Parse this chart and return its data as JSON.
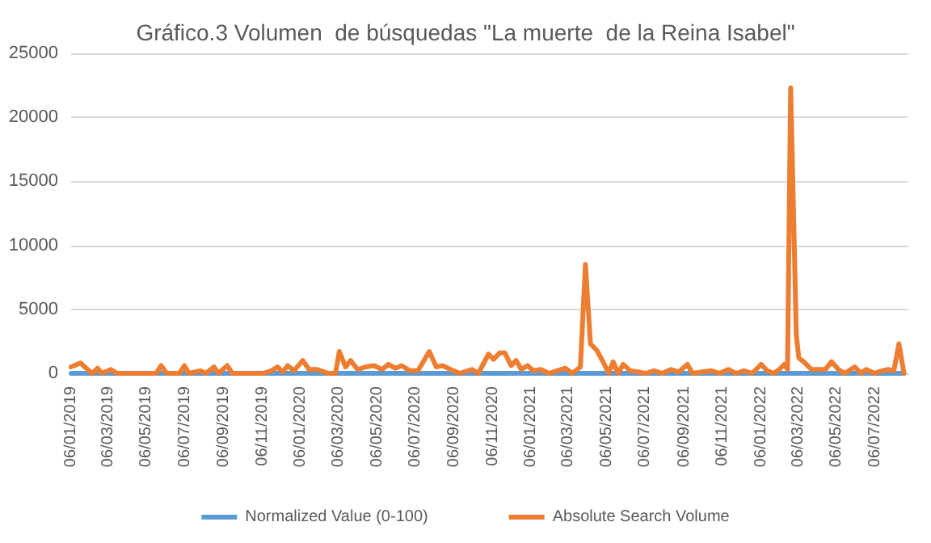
{
  "chart_data": {
    "type": "line",
    "title": "Gráfico.3 Volumen  de búsquedas \"La muerte  de la Reina Isabel\"",
    "x": [
      "2019-01-06",
      "2019-01-21",
      "2019-02-01",
      "2019-02-09",
      "2019-02-17",
      "2019-02-24",
      "2019-03-10",
      "2019-03-20",
      "2019-05-21",
      "2019-05-29",
      "2019-06-07",
      "2019-06-27",
      "2019-07-05",
      "2019-07-12",
      "2019-07-30",
      "2019-08-08",
      "2019-08-21",
      "2019-08-28",
      "2019-09-11",
      "2019-09-19",
      "2019-11-07",
      "2019-11-20",
      "2019-11-30",
      "2019-12-08",
      "2019-12-16",
      "2019-12-26",
      "2020-01-09",
      "2020-01-19",
      "2020-02-01",
      "2020-02-19",
      "2020-03-01",
      "2020-03-07",
      "2020-03-17",
      "2020-03-25",
      "2020-04-05",
      "2020-04-18",
      "2020-05-01",
      "2020-05-14",
      "2020-05-24",
      "2020-06-04",
      "2020-06-14",
      "2020-06-27",
      "2020-07-10",
      "2020-07-28",
      "2020-08-08",
      "2020-08-18",
      "2020-08-31",
      "2020-09-14",
      "2020-10-04",
      "2020-10-14",
      "2020-10-30",
      "2020-11-07",
      "2020-11-17",
      "2020-11-25",
      "2020-12-05",
      "2020-12-13",
      "2020-12-21",
      "2020-12-31",
      "2021-01-09",
      "2021-01-21",
      "2021-02-03",
      "2021-02-16",
      "2021-03-01",
      "2021-03-12",
      "2021-03-25",
      "2021-04-02",
      "2021-04-10",
      "2021-04-20",
      "2021-04-30",
      "2021-05-09",
      "2021-05-16",
      "2021-05-24",
      "2021-06-01",
      "2021-06-12",
      "2021-07-07",
      "2021-07-20",
      "2021-08-02",
      "2021-08-16",
      "2021-08-28",
      "2021-09-11",
      "2021-09-19",
      "2021-10-19",
      "2021-11-01",
      "2021-11-15",
      "2021-11-27",
      "2021-12-10",
      "2021-12-23",
      "2022-01-06",
      "2022-01-16",
      "2022-01-26",
      "2022-02-04",
      "2022-02-12",
      "2022-02-17",
      "2022-02-22",
      "2022-03-03",
      "2022-03-07",
      "2022-03-17",
      "2022-03-27",
      "2022-04-18",
      "2022-04-28",
      "2022-05-09",
      "2022-05-19",
      "2022-06-04",
      "2022-06-14",
      "2022-06-22",
      "2022-07-05",
      "2022-07-17",
      "2022-07-27",
      "2022-08-05",
      "2022-08-13",
      "2022-08-21"
    ],
    "series": [
      {
        "name": "Normalized Value (0-100)",
        "color": "#5b9bd5",
        "values": [
          0,
          0,
          0,
          0,
          0,
          0,
          0,
          0,
          0,
          0,
          0,
          0,
          0,
          0,
          0,
          0,
          0,
          0,
          0,
          0,
          0,
          0,
          0,
          0,
          0,
          0,
          0,
          0,
          0,
          0,
          0,
          0,
          0,
          0,
          0,
          0,
          0,
          0,
          0,
          0,
          0,
          0,
          0,
          0,
          0,
          0,
          0,
          0,
          0,
          0,
          0,
          0,
          0,
          0,
          0,
          0,
          0,
          0,
          0,
          0,
          0,
          0,
          0,
          0,
          0,
          0,
          0,
          0,
          0,
          0,
          0,
          0,
          0,
          0,
          0,
          0,
          0,
          0,
          0,
          0,
          0,
          0,
          0,
          0,
          0,
          0,
          0,
          0,
          0,
          0,
          0,
          0,
          0,
          0,
          0,
          0,
          0,
          0,
          0,
          0,
          0,
          0,
          0,
          0,
          0,
          0,
          0,
          0,
          0,
          0,
          0
        ]
      },
      {
        "name": "Absolute Search Volume",
        "color": "#ed7d31",
        "values": [
          500,
          800,
          300,
          0,
          400,
          0,
          300,
          0,
          0,
          600,
          0,
          0,
          600,
          0,
          200,
          0,
          500,
          0,
          600,
          0,
          0,
          200,
          500,
          100,
          600,
          200,
          1000,
          300,
          300,
          0,
          0,
          1700,
          500,
          1000,
          300,
          500,
          600,
          300,
          700,
          400,
          600,
          200,
          200,
          1700,
          500,
          600,
          300,
          0,
          300,
          0,
          1500,
          1100,
          1600,
          1600,
          600,
          1000,
          300,
          600,
          200,
          300,
          0,
          200,
          400,
          0,
          500,
          8500,
          2300,
          1800,
          900,
          0,
          900,
          0,
          700,
          200,
          0,
          200,
          0,
          300,
          100,
          700,
          0,
          200,
          0,
          300,
          0,
          200,
          0,
          700,
          200,
          0,
          300,
          700,
          300,
          22300,
          3000,
          1200,
          800,
          300,
          300,
          900,
          300,
          0,
          500,
          0,
          300,
          0,
          200,
          300,
          200,
          2300,
          0
        ]
      }
    ],
    "xlim": [
      "2019-01-06",
      "2022-08-28"
    ],
    "xticks": [
      {
        "value": "2019-01-06",
        "label": "06/01/2019"
      },
      {
        "value": "2019-03-06",
        "label": "06/03/2019"
      },
      {
        "value": "2019-05-06",
        "label": "06/05/2019"
      },
      {
        "value": "2019-07-06",
        "label": "06/07/2019"
      },
      {
        "value": "2019-09-06",
        "label": "06/09/2019"
      },
      {
        "value": "2019-11-06",
        "label": "06/11/2019"
      },
      {
        "value": "2020-01-06",
        "label": "06/01/2020"
      },
      {
        "value": "2020-03-06",
        "label": "06/03/2020"
      },
      {
        "value": "2020-05-06",
        "label": "06/05/2020"
      },
      {
        "value": "2020-07-06",
        "label": "06/07/2020"
      },
      {
        "value": "2020-09-06",
        "label": "06/09/2020"
      },
      {
        "value": "2020-11-06",
        "label": "06/11/2020"
      },
      {
        "value": "2021-01-06",
        "label": "06/01/2021"
      },
      {
        "value": "2021-03-06",
        "label": "06/03/2021"
      },
      {
        "value": "2021-05-06",
        "label": "06/05/2021"
      },
      {
        "value": "2021-07-06",
        "label": "06/07/2021"
      },
      {
        "value": "2021-09-06",
        "label": "06/09/2021"
      },
      {
        "value": "2021-11-06",
        "label": "06/11/2021"
      },
      {
        "value": "2022-01-06",
        "label": "06/01/2022"
      },
      {
        "value": "2022-03-06",
        "label": "06/03/2022"
      },
      {
        "value": "2022-05-06",
        "label": "06/05/2022"
      },
      {
        "value": "2022-07-06",
        "label": "06/07/2022"
      }
    ],
    "ylim": [
      0,
      25000
    ],
    "yticks": [
      0,
      5000,
      10000,
      15000,
      20000,
      25000
    ],
    "grid": "y",
    "legend": "bottom",
    "marker": "none",
    "line_style": "solid"
  }
}
